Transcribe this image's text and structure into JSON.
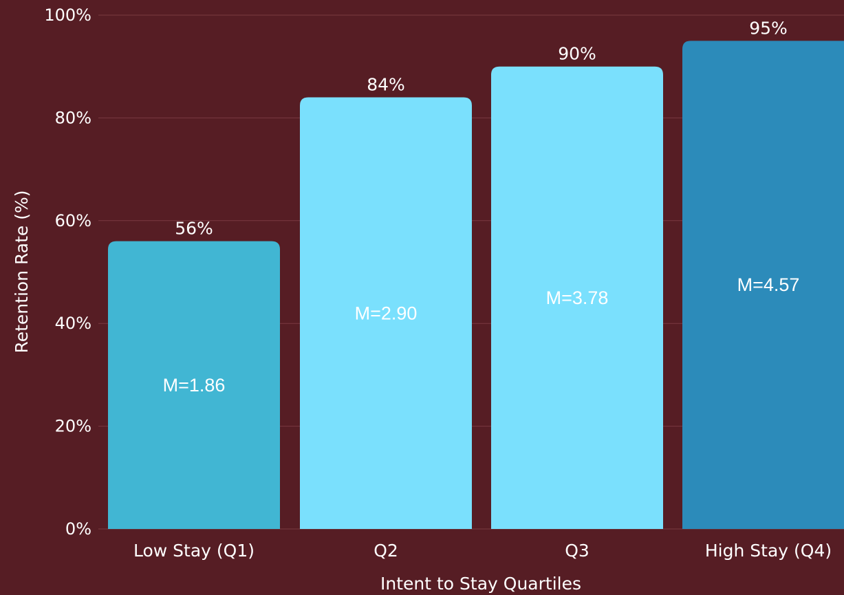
{
  "chart_data": {
    "type": "bar",
    "title": "",
    "xlabel": "Intent to Stay Quartiles",
    "ylabel": "Retention Rate (%)",
    "ylim": [
      0,
      100
    ],
    "yticks": [
      0,
      20,
      40,
      60,
      80,
      100
    ],
    "ytick_labels": [
      "0%",
      "20%",
      "40%",
      "60%",
      "80%",
      "100%"
    ],
    "grid": true,
    "categories": [
      "Low Stay (Q1)",
      "Q2",
      "Q3",
      "High Stay (Q4)"
    ],
    "values": [
      56,
      84,
      90,
      95
    ],
    "value_labels": [
      "56%",
      "84%",
      "90%",
      "95%"
    ],
    "bar_annotations": [
      "M=1.86",
      "M=2.90",
      "M=3.78",
      "M=4.57"
    ],
    "colors": [
      "#41b6d3",
      "#7ae0fd",
      "#7ae0fd",
      "#2c8bba"
    ],
    "background": "#561d24",
    "gridline_color": "#7a3a41"
  }
}
